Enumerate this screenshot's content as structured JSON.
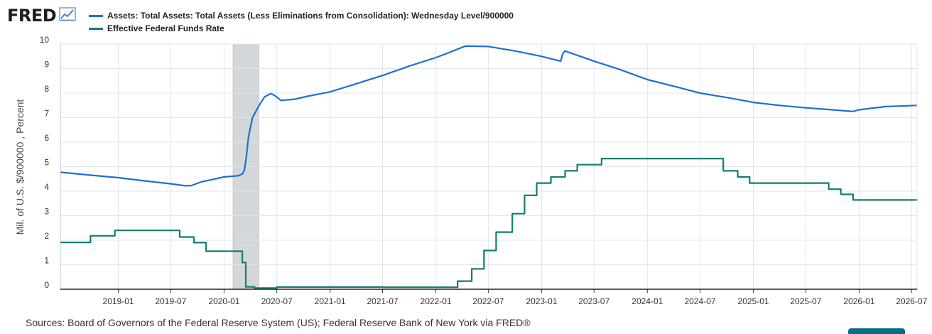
{
  "logo": {
    "text": "FRED",
    "icon": "chart-line-icon"
  },
  "footer": {
    "sources": "Sources: Board of Governors of the Federal Reserve System (US); Federal Reserve Bank of New York via FRED®"
  },
  "colors": {
    "assets": "#1f6fd1",
    "ffr": "#127c72",
    "recession": "#d4d7da",
    "grid": "#e2e5e8"
  },
  "chart_data": {
    "type": "line",
    "title": "",
    "xlabel": "",
    "ylabel": "Mil. of U.S. $/900000 , Percent",
    "ylim": [
      0,
      10
    ],
    "yticks": [
      "0",
      "1",
      "2",
      "3",
      "4",
      "5",
      "6",
      "7",
      "8",
      "9",
      "10"
    ],
    "xlim": [
      "2018-06-15",
      "2026-07-20"
    ],
    "xticks": [
      "2019-01",
      "2019-07",
      "2020-01",
      "2020-07",
      "2021-01",
      "2021-07",
      "2022-01",
      "2022-07",
      "2023-01",
      "2023-07",
      "2024-01",
      "2024-07",
      "2025-01",
      "2025-07",
      "2026-01",
      "2026-07"
    ],
    "grid": true,
    "legend_position": "top-left",
    "recession": {
      "start": "2020-02-01",
      "end": "2020-04-30"
    },
    "series": [
      {
        "name": "Assets: Total Assets: Total Assets (Less Eliminations from Consolidation): Wednesday Level/900000",
        "color": "#1f6fd1",
        "step": false,
        "points": [
          [
            "2018-06-15",
            4.77
          ],
          [
            "2018-10-01",
            4.65
          ],
          [
            "2019-01-01",
            4.55
          ],
          [
            "2019-04-01",
            4.42
          ],
          [
            "2019-07-01",
            4.3
          ],
          [
            "2019-08-20",
            4.22
          ],
          [
            "2019-09-10",
            4.23
          ],
          [
            "2019-10-15",
            4.38
          ],
          [
            "2020-01-01",
            4.58
          ],
          [
            "2020-02-20",
            4.63
          ],
          [
            "2020-03-04",
            4.7
          ],
          [
            "2020-03-11",
            4.85
          ],
          [
            "2020-03-18",
            5.4
          ],
          [
            "2020-03-25",
            6.2
          ],
          [
            "2020-04-08",
            7.0
          ],
          [
            "2020-05-01",
            7.5
          ],
          [
            "2020-05-20",
            7.85
          ],
          [
            "2020-06-10",
            7.98
          ],
          [
            "2020-06-24",
            7.9
          ],
          [
            "2020-07-15",
            7.7
          ],
          [
            "2020-09-01",
            7.75
          ],
          [
            "2020-10-15",
            7.87
          ],
          [
            "2021-01-01",
            8.05
          ],
          [
            "2021-04-01",
            8.38
          ],
          [
            "2021-07-01",
            8.72
          ],
          [
            "2021-10-01",
            9.1
          ],
          [
            "2022-01-01",
            9.45
          ],
          [
            "2022-02-15",
            9.65
          ],
          [
            "2022-04-13",
            9.92
          ],
          [
            "2022-07-01",
            9.9
          ],
          [
            "2022-10-01",
            9.72
          ],
          [
            "2023-01-01",
            9.5
          ],
          [
            "2023-03-08",
            9.3
          ],
          [
            "2023-03-15",
            9.6
          ],
          [
            "2023-03-22",
            9.72
          ],
          [
            "2023-04-15",
            9.62
          ],
          [
            "2023-07-01",
            9.3
          ],
          [
            "2023-10-01",
            8.95
          ],
          [
            "2024-01-01",
            8.55
          ],
          [
            "2024-04-01",
            8.28
          ],
          [
            "2024-07-01",
            8.0
          ],
          [
            "2024-10-01",
            7.82
          ],
          [
            "2025-01-01",
            7.62
          ],
          [
            "2025-04-01",
            7.5
          ],
          [
            "2025-07-01",
            7.4
          ],
          [
            "2025-10-01",
            7.32
          ],
          [
            "2025-12-10",
            7.25
          ],
          [
            "2026-01-01",
            7.32
          ],
          [
            "2026-04-01",
            7.45
          ],
          [
            "2026-07-20",
            7.5
          ]
        ]
      },
      {
        "name": "Effective Federal Funds Rate",
        "color": "#127c72",
        "step": true,
        "points": [
          [
            "2018-06-15",
            1.91
          ],
          [
            "2018-09-27",
            2.18
          ],
          [
            "2018-12-20",
            2.4
          ],
          [
            "2019-08-01",
            2.13
          ],
          [
            "2019-09-19",
            1.9
          ],
          [
            "2019-10-31",
            1.55
          ],
          [
            "2020-03-04",
            1.09
          ],
          [
            "2020-03-16",
            0.1
          ],
          [
            "2020-04-15",
            0.05
          ],
          [
            "2020-07-01",
            0.09
          ],
          [
            "2021-07-01",
            0.08
          ],
          [
            "2022-03-17",
            0.33
          ],
          [
            "2022-05-05",
            0.83
          ],
          [
            "2022-06-16",
            1.58
          ],
          [
            "2022-07-28",
            2.33
          ],
          [
            "2022-09-22",
            3.08
          ],
          [
            "2022-11-03",
            3.83
          ],
          [
            "2022-12-15",
            4.33
          ],
          [
            "2023-02-02",
            4.58
          ],
          [
            "2023-03-23",
            4.83
          ],
          [
            "2023-05-04",
            5.08
          ],
          [
            "2023-07-27",
            5.33
          ],
          [
            "2024-09-19",
            4.83
          ],
          [
            "2024-11-08",
            4.58
          ],
          [
            "2024-12-19",
            4.33
          ],
          [
            "2025-09-18",
            4.08
          ],
          [
            "2025-10-30",
            3.87
          ],
          [
            "2025-12-11",
            3.64
          ],
          [
            "2026-07-20",
            3.63
          ]
        ]
      }
    ]
  }
}
